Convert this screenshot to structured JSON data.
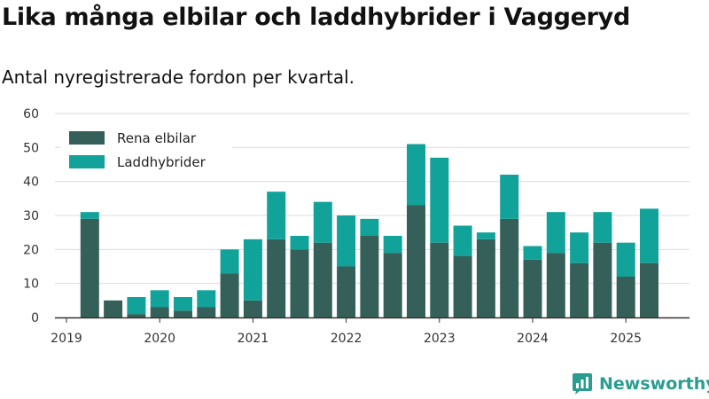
{
  "title": "Lika många elbilar och laddhybrider i Vaggeryd",
  "subtitle": "Antal nyregistrerade fordon per kvartal.",
  "brand": {
    "name": "Newsworthy",
    "icon": "newsworthy-logo-icon",
    "color": "#2a9d91"
  },
  "chart_data": {
    "type": "bar",
    "stacked": true,
    "x_ticks": [
      "2019",
      "2020",
      "2021",
      "2022",
      "2023",
      "2024",
      "2025"
    ],
    "categories": [
      "2019 Q1",
      "2019 Q2",
      "2019 Q3",
      "2019 Q4",
      "2020 Q1",
      "2020 Q2",
      "2020 Q3",
      "2020 Q4",
      "2021 Q1",
      "2021 Q2",
      "2021 Q3",
      "2021 Q4",
      "2022 Q1",
      "2022 Q2",
      "2022 Q3",
      "2022 Q4",
      "2023 Q1",
      "2023 Q2",
      "2023 Q3",
      "2023 Q4",
      "2024 Q1",
      "2024 Q2",
      "2024 Q3",
      "2024 Q4",
      "2025 Q1",
      "2025 Q2",
      "2025 Q3"
    ],
    "series": [
      {
        "name": "Rena elbilar",
        "color": "#35605a",
        "values": [
          0,
          29,
          5,
          1,
          3,
          2,
          3,
          13,
          5,
          23,
          20,
          22,
          15,
          24,
          19,
          33,
          22,
          18,
          23,
          29,
          17,
          19,
          16,
          22,
          12,
          16,
          0
        ]
      },
      {
        "name": "Laddhybrider",
        "color": "#11a39a",
        "values": [
          0,
          2,
          0,
          5,
          5,
          4,
          5,
          7,
          18,
          14,
          4,
          12,
          15,
          5,
          5,
          18,
          25,
          9,
          2,
          13,
          4,
          12,
          9,
          9,
          10,
          16,
          0
        ]
      }
    ],
    "ylim": [
      0,
      60
    ],
    "y_ticks": [
      0,
      10,
      20,
      30,
      40,
      50,
      60
    ],
    "grid": true,
    "legend": "top-left"
  }
}
